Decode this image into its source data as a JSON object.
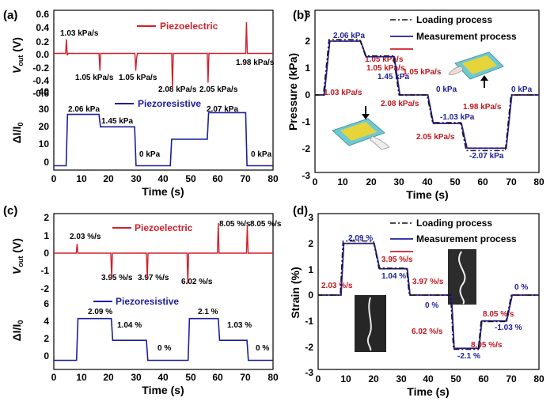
{
  "colors": {
    "piezoelectric": "#d0202a",
    "piezoresistive": "#1c1f9a",
    "measurement": "#1c1f9a",
    "loading": "#111111",
    "annotation_red": "#c0181e",
    "annotation_blue": "#1c1f9a",
    "sensor_yellow": "#e6d43a",
    "sensor_cyan": "#6fc9d3"
  },
  "chart_data": [
    {
      "panel": "(a)",
      "type": "line",
      "xlabel": "Time (s)",
      "xlim": [
        0,
        80
      ],
      "xticks": [
        "0",
        "10",
        "20",
        "30",
        "40",
        "50",
        "60",
        "70",
        "80"
      ],
      "top": {
        "ylabel": "V_out (V)",
        "ylim": [
          -0.6,
          0.6
        ],
        "yticks": [
          "0.6",
          "0.4",
          "0.2",
          "0.0",
          "-0.2",
          "-0.4",
          "-0.6"
        ],
        "series": [
          {
            "name": "Piezoelectric",
            "x": [
              0,
              4.3,
              4.6,
              4.9,
              5.2,
              16.5,
              16.8,
              17.1,
              29.6,
              29.9,
              30.2,
              30.5,
              43.0,
              43.3,
              43.6,
              56.0,
              56.3,
              56.6,
              70.0,
              70.3,
              70.6,
              80
            ],
            "y": [
              0,
              0,
              0.21,
              -0.03,
              0,
              0,
              -0.26,
              0,
              0,
              -0.26,
              -0.07,
              0,
              0,
              -0.52,
              0,
              0,
              -0.44,
              0,
              0,
              0.47,
              0,
              0
            ]
          }
        ]
      },
      "bottom": {
        "ylabel": "ΔI/I_0",
        "ylim": [
          -2,
          40
        ],
        "yticks": [
          "0",
          "10",
          "20",
          "30",
          "40"
        ],
        "series": [
          {
            "name": "Piezoresistive",
            "x": [
              0,
              4.5,
              5,
              16.5,
              17,
              29.5,
              30,
              42.5,
              43,
              56,
              56.5,
              70,
              70.5,
              80
            ],
            "y": [
              0,
              0,
              29,
              29,
              22,
              22,
              0,
              0,
              15,
              15,
              30,
              30,
              0,
              0
            ]
          }
        ]
      },
      "annotations_top": [
        "1.03 kPa/s",
        "1.05 kPa/s",
        "1.05 kPa/s",
        "2.08 kPa/s",
        "2.05 kPa/s",
        "1.98 kPa/s"
      ],
      "annotations_bottom": [
        "2.06 kPa",
        "1.45 kPa",
        "0 kPa",
        "2.07 kPa",
        "0 kPa"
      ]
    },
    {
      "panel": "(b)",
      "type": "line",
      "xlabel": "Time (s)",
      "ylabel": "Pressure (kPa)",
      "xlim": [
        0,
        80
      ],
      "ylim": [
        -3,
        3
      ],
      "xticks": [
        "0",
        "10",
        "20",
        "30",
        "40",
        "50",
        "60",
        "70",
        "80"
      ],
      "yticks": [
        "3",
        "2",
        "1",
        "0",
        "-1",
        "-2",
        "-3"
      ],
      "series": [
        {
          "name": "Loading process",
          "x": [
            0,
            3,
            5,
            16,
            18,
            28,
            30,
            40,
            42,
            52,
            54,
            68,
            70,
            80
          ],
          "y": [
            0,
            0,
            2.06,
            2.06,
            1.45,
            1.45,
            0,
            0,
            -1.03,
            -1.03,
            -2.07,
            -2.07,
            0,
            0
          ]
        },
        {
          "name": "Measurement process",
          "x": [
            0,
            3.3,
            5.3,
            16.3,
            18.3,
            28.3,
            30.3,
            40.3,
            42.3,
            52.3,
            54.3,
            68.3,
            70.3,
            80
          ],
          "y": [
            0,
            0,
            2.0,
            2.0,
            1.42,
            1.42,
            0,
            0,
            -1.06,
            -1.06,
            -1.98,
            -1.98,
            0,
            0
          ]
        }
      ],
      "annotations_red": [
        "1.05 kPa/s",
        "1.05 kPa/s",
        "1.05 kPa/s",
        "1.03 kPa/s",
        "2.08 kPa/s",
        "1.98 kPa/s",
        "2.05 kPa/s"
      ],
      "annotations_blue": [
        "2.06 kPa",
        "1.45 kPa",
        "0 kPa",
        "-1.03 kPa",
        "-2.07 kPa",
        "0 kPa"
      ]
    },
    {
      "panel": "(c)",
      "type": "line",
      "xlabel": "Time (s)",
      "xlim": [
        0,
        80
      ],
      "xticks": [
        "0",
        "10",
        "20",
        "30",
        "40",
        "50",
        "60",
        "70",
        "80"
      ],
      "top": {
        "ylabel": "V_out (V)",
        "ylim": [
          -2,
          2
        ],
        "yticks": [
          "2",
          "1",
          "0",
          "-1",
          "-2"
        ],
        "series": [
          {
            "name": "Piezoelectric",
            "x": [
              0,
              8.2,
              8.5,
              8.8,
              20.8,
              21.1,
              21.4,
              33.8,
              34.1,
              34.4,
              48.6,
              48.9,
              49.2,
              59.7,
              60.0,
              60.3,
              70.3,
              70.6,
              70.9,
              80
            ],
            "y": [
              0,
              0,
              0.52,
              0,
              0,
              -1.4,
              0,
              0,
              -1.4,
              0,
              0,
              -1.7,
              0,
              0,
              1.7,
              0,
              0,
              1.55,
              0,
              0
            ]
          }
        ]
      },
      "bottom": {
        "ylabel": "ΔI/I_0",
        "ylim": [
          -0.5,
          6.5
        ],
        "yticks": [
          "0",
          "2",
          "4",
          "6"
        ],
        "series": [
          {
            "name": "Piezoresistive",
            "x": [
              0,
              8.3,
              8.8,
              21,
              21.5,
              33.8,
              34.3,
              49,
              49.5,
              60,
              60.5,
              70.5,
              71,
              80
            ],
            "y": [
              0,
              0,
              4.8,
              4.8,
              2.3,
              2.3,
              0,
              0,
              4.8,
              4.8,
              2.3,
              2.3,
              0,
              0
            ]
          }
        ]
      },
      "annotations_top": [
        "2.03 %/s",
        "3.95 %/s",
        "3.97 %/s",
        "6.02 %/s",
        "8.05 %/s",
        "8.05 %/s"
      ],
      "annotations_bottom": [
        "2.09 %",
        "1.04 %",
        "0 %",
        "2.1 %",
        "1.03 %",
        "0 %"
      ]
    },
    {
      "panel": "(d)",
      "type": "line",
      "xlabel": "Time (s)",
      "ylabel": "Strain (%)",
      "xlim": [
        0,
        80
      ],
      "ylim": [
        -3,
        3
      ],
      "xticks": [
        "0",
        "10",
        "20",
        "30",
        "40",
        "50",
        "60",
        "70",
        "80"
      ],
      "yticks": [
        "3",
        "2",
        "1",
        "0",
        "-1",
        "-2",
        "-3"
      ],
      "series": [
        {
          "name": "Loading process",
          "x": [
            0,
            8,
            9,
            20,
            22,
            32,
            33,
            48,
            49,
            58,
            59,
            68,
            70,
            80
          ],
          "y": [
            0,
            0,
            2.09,
            2.09,
            1.04,
            1.04,
            0,
            0,
            -2.1,
            -2.1,
            -1.03,
            -1.03,
            0,
            0
          ]
        },
        {
          "name": "Measurement process",
          "x": [
            0,
            8.3,
            9.3,
            20.3,
            22.3,
            32.3,
            33.3,
            48.3,
            49.3,
            58.3,
            59.3,
            68.3,
            70.3,
            80
          ],
          "y": [
            0,
            0,
            2.0,
            2.0,
            1.02,
            1.02,
            0,
            0,
            -2.06,
            -2.06,
            -1.0,
            -1.0,
            0,
            0
          ]
        }
      ],
      "annotations_red": [
        "3.95 %/s",
        "2.03 %/s",
        "3.97 %/s",
        "6.02 %/s",
        "8.05 %/s",
        "8.05 %/s"
      ],
      "annotations_blue": [
        "2.09 %",
        "1.04 %",
        "0 %",
        "-2.1 %",
        "-1.03 %",
        "0 %"
      ]
    }
  ]
}
